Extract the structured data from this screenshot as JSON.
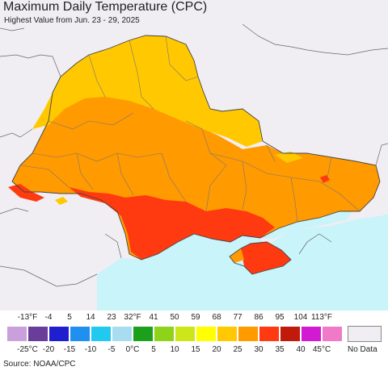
{
  "title": "Maximum Daily Temperature (CPC)",
  "subtitle": "Highest Value from Jun. 23 - 29, 2025",
  "source": "Source: NOAA/CPC",
  "legend": {
    "f_labels": [
      "-13°F",
      "-4",
      "5",
      "14",
      "23",
      "32°F",
      "41",
      "50",
      "59",
      "68",
      "77",
      "86",
      "95",
      "104",
      "113°F"
    ],
    "c_labels": [
      "-25°C",
      "-20",
      "-15",
      "-10",
      "-5",
      "0°C",
      "5",
      "10",
      "15",
      "20",
      "25",
      "30",
      "35",
      "40",
      "45°C"
    ],
    "colors": [
      "#c9a0dc",
      "#6a3d9a",
      "#1f1fd0",
      "#1f8ff0",
      "#21c8f0",
      "#a8dcf0",
      "#1aa01a",
      "#8fd21a",
      "#cde61a",
      "#ffff00",
      "#ffc800",
      "#ff9a00",
      "#ff3a10",
      "#c01a0a",
      "#d21ad2",
      "#f07ac8"
    ],
    "no_data_label": "No Data",
    "no_data_color": "#f0eef2"
  },
  "map_colors": {
    "sea": "#c8f4fa",
    "no_data_land": "#f0eef2",
    "zone_77": "#ffc800",
    "zone_86": "#ff9a00",
    "zone_95": "#ff3a10"
  }
}
